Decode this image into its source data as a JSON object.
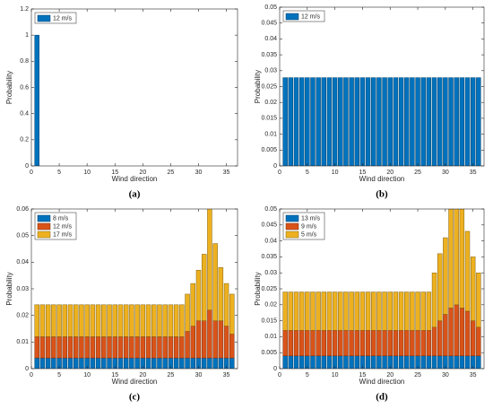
{
  "chart_data": [
    {
      "type": "bar",
      "panel_label": "(a)",
      "xlabel": "Wind direction",
      "ylabel": "Probability",
      "x": [
        1,
        2,
        3,
        4,
        5,
        6,
        7,
        8,
        9,
        10,
        11,
        12,
        13,
        14,
        15,
        16,
        17,
        18,
        19,
        20,
        21,
        22,
        23,
        24,
        25,
        26,
        27,
        28,
        29,
        30,
        31,
        32,
        33,
        34,
        35,
        36
      ],
      "series": [
        {
          "name": "12 m/s",
          "color": "#0072BD",
          "values": [
            1,
            0,
            0,
            0,
            0,
            0,
            0,
            0,
            0,
            0,
            0,
            0,
            0,
            0,
            0,
            0,
            0,
            0,
            0,
            0,
            0,
            0,
            0,
            0,
            0,
            0,
            0,
            0,
            0,
            0,
            0,
            0,
            0,
            0,
            0,
            0
          ]
        }
      ],
      "xlim": [
        0,
        37
      ],
      "xticks": [
        0,
        5,
        10,
        15,
        20,
        25,
        30,
        35
      ],
      "ylim": [
        0,
        1.2
      ],
      "yticks": [
        0,
        0.2,
        0.4,
        0.6,
        0.8,
        1,
        1.2
      ],
      "legend": "upper left"
    },
    {
      "type": "bar",
      "panel_label": "(b)",
      "xlabel": "Wind direction",
      "ylabel": "Probability",
      "x": [
        1,
        2,
        3,
        4,
        5,
        6,
        7,
        8,
        9,
        10,
        11,
        12,
        13,
        14,
        15,
        16,
        17,
        18,
        19,
        20,
        21,
        22,
        23,
        24,
        25,
        26,
        27,
        28,
        29,
        30,
        31,
        32,
        33,
        34,
        35,
        36
      ],
      "series": [
        {
          "name": "12 m/s",
          "color": "#0072BD",
          "values": [
            0.0278,
            0.0278,
            0.0278,
            0.0278,
            0.0278,
            0.0278,
            0.0278,
            0.0278,
            0.0278,
            0.0278,
            0.0278,
            0.0278,
            0.0278,
            0.0278,
            0.0278,
            0.0278,
            0.0278,
            0.0278,
            0.0278,
            0.0278,
            0.0278,
            0.0278,
            0.0278,
            0.0278,
            0.0278,
            0.0278,
            0.0278,
            0.0278,
            0.0278,
            0.0278,
            0.0278,
            0.0278,
            0.0278,
            0.0278,
            0.0278,
            0.0278
          ]
        }
      ],
      "xlim": [
        0,
        37
      ],
      "xticks": [
        0,
        5,
        10,
        15,
        20,
        25,
        30,
        35
      ],
      "ylim": [
        0,
        0.05
      ],
      "yticks": [
        0,
        0.005,
        0.01,
        0.015,
        0.02,
        0.025,
        0.03,
        0.035,
        0.04,
        0.045,
        0.05
      ],
      "legend": "upper left"
    },
    {
      "type": "bar",
      "stacked": true,
      "panel_label": "(c)",
      "xlabel": "Wind direction",
      "ylabel": "Probability",
      "x": [
        1,
        2,
        3,
        4,
        5,
        6,
        7,
        8,
        9,
        10,
        11,
        12,
        13,
        14,
        15,
        16,
        17,
        18,
        19,
        20,
        21,
        22,
        23,
        24,
        25,
        26,
        27,
        28,
        29,
        30,
        31,
        32,
        33,
        34,
        35,
        36
      ],
      "series": [
        {
          "name": "8 m/s",
          "color": "#0072BD",
          "values": [
            0.004,
            0.004,
            0.004,
            0.004,
            0.004,
            0.004,
            0.004,
            0.004,
            0.004,
            0.004,
            0.004,
            0.004,
            0.004,
            0.004,
            0.004,
            0.004,
            0.004,
            0.004,
            0.004,
            0.004,
            0.004,
            0.004,
            0.004,
            0.004,
            0.004,
            0.004,
            0.004,
            0.004,
            0.004,
            0.004,
            0.004,
            0.004,
            0.004,
            0.004,
            0.004,
            0.004
          ]
        },
        {
          "name": "12 m/s",
          "color": "#D95319",
          "values": [
            0.008,
            0.008,
            0.008,
            0.008,
            0.008,
            0.008,
            0.008,
            0.008,
            0.008,
            0.008,
            0.008,
            0.008,
            0.008,
            0.008,
            0.008,
            0.008,
            0.008,
            0.008,
            0.008,
            0.008,
            0.008,
            0.008,
            0.008,
            0.008,
            0.008,
            0.008,
            0.008,
            0.01,
            0.012,
            0.014,
            0.014,
            0.018,
            0.014,
            0.014,
            0.012,
            0.009
          ]
        },
        {
          "name": "17 m/s",
          "color": "#EDB120",
          "values": [
            0.012,
            0.012,
            0.012,
            0.012,
            0.012,
            0.012,
            0.012,
            0.012,
            0.012,
            0.012,
            0.012,
            0.012,
            0.012,
            0.012,
            0.012,
            0.012,
            0.012,
            0.012,
            0.012,
            0.012,
            0.012,
            0.012,
            0.012,
            0.012,
            0.012,
            0.012,
            0.012,
            0.014,
            0.016,
            0.019,
            0.025,
            0.04,
            0.029,
            0.02,
            0.016,
            0.015
          ]
        }
      ],
      "xlim": [
        0,
        37
      ],
      "xticks": [
        0,
        5,
        10,
        15,
        20,
        25,
        30,
        35
      ],
      "ylim": [
        0,
        0.06
      ],
      "yticks": [
        0,
        0.01,
        0.02,
        0.03,
        0.04,
        0.05,
        0.06
      ],
      "legend": "upper left"
    },
    {
      "type": "bar",
      "stacked": true,
      "panel_label": "(d)",
      "xlabel": "Wind direction",
      "ylabel": "Probability",
      "x": [
        1,
        2,
        3,
        4,
        5,
        6,
        7,
        8,
        9,
        10,
        11,
        12,
        13,
        14,
        15,
        16,
        17,
        18,
        19,
        20,
        21,
        22,
        23,
        24,
        25,
        26,
        27,
        28,
        29,
        30,
        31,
        32,
        33,
        34,
        35,
        36
      ],
      "series": [
        {
          "name": "13 m/s",
          "color": "#0072BD",
          "values": [
            0.004,
            0.004,
            0.004,
            0.004,
            0.004,
            0.004,
            0.004,
            0.004,
            0.004,
            0.004,
            0.004,
            0.004,
            0.004,
            0.004,
            0.004,
            0.004,
            0.004,
            0.004,
            0.004,
            0.004,
            0.004,
            0.004,
            0.004,
            0.004,
            0.004,
            0.004,
            0.004,
            0.004,
            0.004,
            0.004,
            0.004,
            0.004,
            0.004,
            0.004,
            0.004,
            0.004
          ]
        },
        {
          "name": "9 m/s",
          "color": "#D95319",
          "values": [
            0.008,
            0.008,
            0.008,
            0.008,
            0.008,
            0.008,
            0.008,
            0.008,
            0.008,
            0.008,
            0.008,
            0.008,
            0.008,
            0.008,
            0.008,
            0.008,
            0.008,
            0.008,
            0.008,
            0.008,
            0.008,
            0.008,
            0.008,
            0.008,
            0.008,
            0.008,
            0.008,
            0.009,
            0.011,
            0.013,
            0.015,
            0.016,
            0.015,
            0.014,
            0.011,
            0.009
          ]
        },
        {
          "name": "5 m/s",
          "color": "#EDB120",
          "values": [
            0.012,
            0.012,
            0.012,
            0.012,
            0.012,
            0.012,
            0.012,
            0.012,
            0.012,
            0.012,
            0.012,
            0.012,
            0.012,
            0.012,
            0.012,
            0.012,
            0.012,
            0.012,
            0.012,
            0.012,
            0.012,
            0.012,
            0.012,
            0.012,
            0.012,
            0.012,
            0.012,
            0.017,
            0.021,
            0.024,
            0.031,
            0.032,
            0.031,
            0.025,
            0.02,
            0.017
          ]
        }
      ],
      "xlim": [
        0,
        37
      ],
      "xticks": [
        0,
        5,
        10,
        15,
        20,
        25,
        30,
        35
      ],
      "ylim": [
        0,
        0.05
      ],
      "yticks": [
        0,
        0.005,
        0.01,
        0.015,
        0.02,
        0.025,
        0.03,
        0.035,
        0.04,
        0.045,
        0.05
      ],
      "legend": "upper left"
    }
  ]
}
